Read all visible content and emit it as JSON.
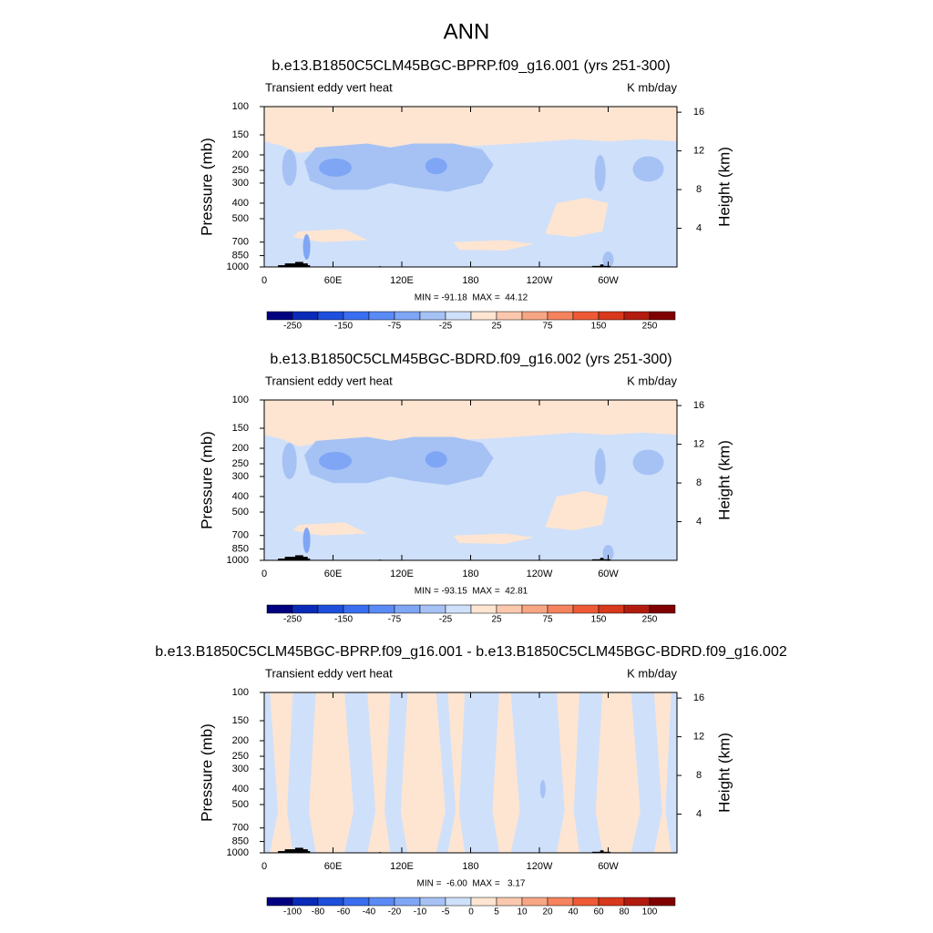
{
  "title": "ANN",
  "chart_data": [
    {
      "type": "contour",
      "title": "b.e13.B1850C5CLM45BGC-BPRP.f09_g16.001 (yrs 251-300)",
      "left_label": "Transient eddy vert heat",
      "right_label": "K mb/day",
      "ylabel": "Pressure (mb)",
      "y2label": "Height (km)",
      "xlim": [
        0,
        360
      ],
      "xticks": [
        0,
        {
          "value": 60,
          "label": "60E"
        },
        {
          "value": 120,
          "label": "120E"
        },
        180,
        {
          "value": 240,
          "label": "120W"
        },
        {
          "value": 300,
          "label": "60W"
        }
      ],
      "ylim": [
        1000,
        100
      ],
      "ylog": true,
      "yticks": [
        100,
        150,
        200,
        250,
        300,
        400,
        500,
        700,
        850,
        1000
      ],
      "y2ticks": [
        4,
        8,
        12,
        16
      ],
      "stats": "MIN = -91.18  MAX =  44.12",
      "colorbar": {
        "ticks": [
          -250,
          -150,
          -75,
          -25,
          25,
          75,
          150,
          250
        ],
        "colors": [
          "#000080",
          "#0a2bb8",
          "#1e4fdc",
          "#3a6ef0",
          "#5a8af5",
          "#7fa6f5",
          "#a6c2f5",
          "#cfe0fa",
          "#fde5d2",
          "#fbc8ad",
          "#f7a683",
          "#f4835e",
          "#ee5a35",
          "#d8381c",
          "#b21c0f",
          "#800000"
        ]
      }
    },
    {
      "type": "contour",
      "title": "b.e13.B1850C5CLM45BGC-BDRD.f09_g16.002 (yrs 251-300)",
      "left_label": "Transient eddy vert heat",
      "right_label": "K mb/day",
      "ylabel": "Pressure (mb)",
      "y2label": "Height (km)",
      "xlim": [
        0,
        360
      ],
      "xticks": [
        0,
        {
          "value": 60,
          "label": "60E"
        },
        {
          "value": 120,
          "label": "120E"
        },
        180,
        {
          "value": 240,
          "label": "120W"
        },
        {
          "value": 300,
          "label": "60W"
        }
      ],
      "ylim": [
        1000,
        100
      ],
      "ylog": true,
      "yticks": [
        100,
        150,
        200,
        250,
        300,
        400,
        500,
        700,
        850,
        1000
      ],
      "y2ticks": [
        4,
        8,
        12,
        16
      ],
      "stats": "MIN = -93.15  MAX =  42.81",
      "colorbar": {
        "ticks": [
          -250,
          -150,
          -75,
          -25,
          25,
          75,
          150,
          250
        ],
        "colors": [
          "#000080",
          "#0a2bb8",
          "#1e4fdc",
          "#3a6ef0",
          "#5a8af5",
          "#7fa6f5",
          "#a6c2f5",
          "#cfe0fa",
          "#fde5d2",
          "#fbc8ad",
          "#f7a683",
          "#f4835e",
          "#ee5a35",
          "#d8381c",
          "#b21c0f",
          "#800000"
        ]
      }
    },
    {
      "type": "contour",
      "title": "b.e13.B1850C5CLM45BGC-BPRP.f09_g16.001 - b.e13.B1850C5CLM45BGC-BDRD.f09_g16.002",
      "left_label": "Transient eddy vert heat",
      "right_label": "K mb/day",
      "ylabel": "Pressure (mb)",
      "y2label": "Height (km)",
      "xlim": [
        0,
        360
      ],
      "xticks": [
        0,
        {
          "value": 60,
          "label": "60E"
        },
        {
          "value": 120,
          "label": "120E"
        },
        180,
        {
          "value": 240,
          "label": "120W"
        },
        {
          "value": 300,
          "label": "60W"
        }
      ],
      "ylim": [
        1000,
        100
      ],
      "ylog": true,
      "yticks": [
        100,
        150,
        200,
        250,
        300,
        400,
        500,
        700,
        850,
        1000
      ],
      "y2ticks": [
        4,
        8,
        12,
        16
      ],
      "stats": "MIN =  -6.00  MAX =   3.17",
      "colorbar": {
        "ticks": [
          -100,
          -80,
          -60,
          -40,
          -20,
          -10,
          -5,
          0,
          5,
          10,
          20,
          40,
          60,
          80,
          100
        ],
        "colors": [
          "#000080",
          "#0a2bb8",
          "#1e4fdc",
          "#3a6ef0",
          "#5a8af5",
          "#7fa6f5",
          "#a6c2f5",
          "#cfe0fa",
          "#fde5d2",
          "#fbc8ad",
          "#f7a683",
          "#f4835e",
          "#ee5a35",
          "#d8381c",
          "#b21c0f",
          "#800000"
        ]
      }
    }
  ]
}
